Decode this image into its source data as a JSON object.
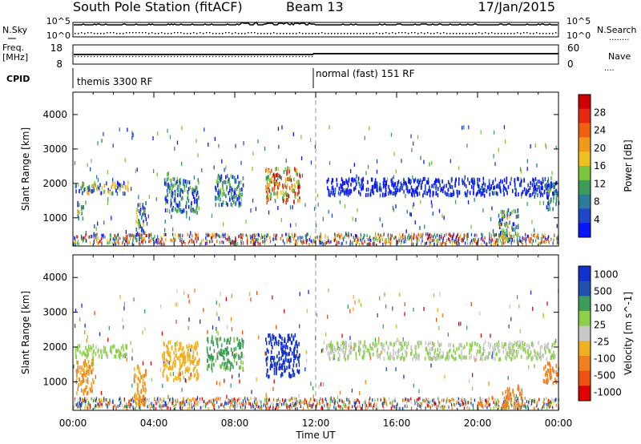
{
  "header": {
    "station": "South Pole Station (fitACF)",
    "beam": "Beam 13",
    "date": "17/Jan/2015"
  },
  "noise_panel": {
    "left_label": "N.Sky",
    "right_label": "N.Search",
    "left_ticks": [
      "10^5",
      "10^0"
    ],
    "right_ticks": [
      "10^5",
      "10^0"
    ],
    "legend_line": "........"
  },
  "freq_panel": {
    "left_label_1": "Freq.",
    "left_label_2": "[MHz]",
    "left_ticks": [
      "18",
      "8"
    ],
    "right_label": "Nave",
    "right_ticks": [
      "60",
      "0"
    ],
    "legend_line": "...."
  },
  "cpid_panel": {
    "label": "CPID",
    "segments": [
      {
        "name": "themis 3300 RF",
        "start_hour": 0
      },
      {
        "name": "normal (fast) 151 RF",
        "start_hour": 12
      }
    ]
  },
  "chart_data": [
    {
      "type": "heatmap",
      "name": "power",
      "ylabel": "Slant Range [km]",
      "yticks": [
        1000,
        2000,
        3000,
        4000
      ],
      "ylim": [
        180,
        4650
      ],
      "xlim": [
        0,
        24
      ],
      "colorbar": {
        "label": "Power [dB]",
        "ticks": [
          "4",
          "8",
          "12",
          "16",
          "20",
          "24",
          "28"
        ],
        "colors": [
          "#0a14ff",
          "#1e46c8",
          "#2d7a9a",
          "#3c9c5a",
          "#7cc43c",
          "#f0c020",
          "#f09a18",
          "#f06010",
          "#e82810",
          "#d00000"
        ]
      },
      "features": [
        {
          "t0": 0.1,
          "t1": 2.7,
          "r0": 1750,
          "r1": 2100,
          "level": "high"
        },
        {
          "t0": 0.2,
          "t1": 0.5,
          "r0": 1000,
          "r1": 1500,
          "level": "high"
        },
        {
          "t0": 3.1,
          "t1": 3.6,
          "r0": 400,
          "r1": 1500,
          "level": "high"
        },
        {
          "t0": 4.5,
          "t1": 6.2,
          "r0": 1200,
          "r1": 2200,
          "level": "mid"
        },
        {
          "t0": 7.0,
          "t1": 8.4,
          "r0": 1400,
          "r1": 2300,
          "level": "mid"
        },
        {
          "t0": 9.5,
          "t1": 11.2,
          "r0": 1500,
          "r1": 2500,
          "level": "max"
        },
        {
          "t0": 12.5,
          "t1": 23.8,
          "r0": 1700,
          "r1": 2200,
          "level": "low"
        },
        {
          "t0": 21.0,
          "t1": 22.0,
          "r0": 400,
          "r1": 1300,
          "level": "high"
        },
        {
          "t0": 23.3,
          "t1": 24.0,
          "r0": 1300,
          "r1": 2100,
          "level": "mid"
        }
      ]
    },
    {
      "type": "heatmap",
      "name": "velocity",
      "ylabel": "Slant Range [km]",
      "yticks": [
        1000,
        2000,
        3000,
        4000
      ],
      "ylim": [
        180,
        4650
      ],
      "xlim": [
        0,
        24
      ],
      "xticks": [
        "00:00",
        "04:00",
        "08:00",
        "12:00",
        "16:00",
        "20:00",
        "00:00"
      ],
      "xlabel": "Time UT",
      "colorbar": {
        "label": "Velocity [m s^-1]",
        "ticks": [
          "1000",
          "500",
          "100",
          "25",
          "-25",
          "-100",
          "-500",
          "-1000"
        ],
        "colors": [
          "#1030d0",
          "#2050b0",
          "#3c9c5a",
          "#8cd048",
          "#c8c8c8",
          "#f0b020",
          "#f08020",
          "#f05010",
          "#e00000"
        ]
      },
      "features": [
        {
          "t0": 0.1,
          "t1": 2.7,
          "r0": 1750,
          "r1": 2100,
          "value": 25
        },
        {
          "t0": 0.1,
          "t1": 1.0,
          "r0": 700,
          "r1": 1700,
          "value": -300
        },
        {
          "t0": 3.0,
          "t1": 3.6,
          "r0": 400,
          "r1": 1500,
          "value": -300
        },
        {
          "t0": 4.4,
          "t1": 6.2,
          "r0": 1100,
          "r1": 2200,
          "value": -200
        },
        {
          "t0": 6.6,
          "t1": 8.4,
          "r0": 1400,
          "r1": 2300,
          "value": 80
        },
        {
          "t0": 9.5,
          "t1": 11.2,
          "r0": 1200,
          "r1": 2400,
          "value": 1000
        },
        {
          "t0": 12.5,
          "t1": 23.8,
          "r0": 1700,
          "r1": 2200,
          "value": 0
        },
        {
          "t0": 20.0,
          "t1": 20.5,
          "r0": 350,
          "r1": 550,
          "value": -300
        },
        {
          "t0": 21.2,
          "t1": 22.2,
          "r0": 300,
          "r1": 900,
          "value": -700
        },
        {
          "t0": 23.2,
          "t1": 24.0,
          "r0": 1000,
          "r1": 1600,
          "value": -400
        }
      ]
    }
  ]
}
